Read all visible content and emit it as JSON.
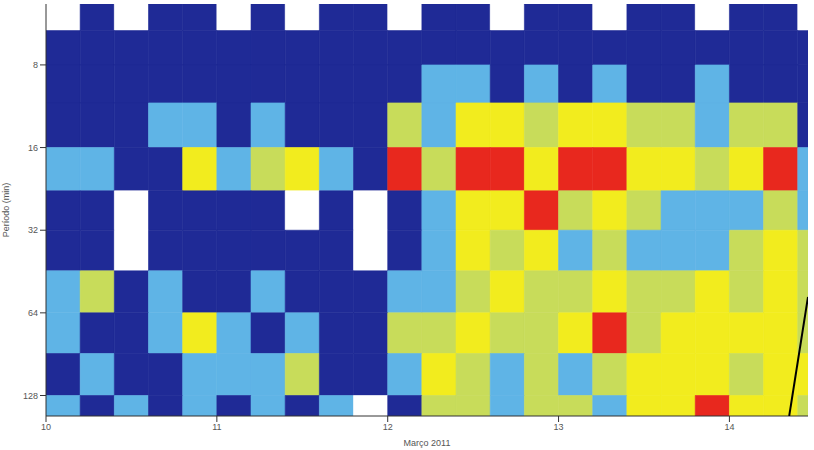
{
  "chart_data": {
    "type": "heatmap",
    "xlabel": "Março 2011",
    "ylabel": "Período (min)",
    "xlim": [
      10,
      14.46
    ],
    "xticks": [
      10,
      11,
      12,
      13,
      14
    ],
    "ylim": [
      4.8,
      152
    ],
    "yticks": [
      8,
      16,
      32,
      64,
      128
    ],
    "log": "y",
    "grid": false,
    "tick_labels": true,
    "cells": {
      "x_edges": [
        10,
        10.2,
        10.4,
        10.6,
        10.8,
        11,
        11.2,
        11.4,
        11.6,
        11.8,
        12,
        12.2,
        12.4,
        12.6,
        12.8,
        13,
        13.2,
        13.4,
        13.6,
        13.8,
        14,
        14.2,
        14.4,
        14.46
      ],
      "y_edges": [
        4.8,
        6,
        8,
        11,
        16,
        23,
        32,
        45,
        64,
        90,
        128,
        152
      ],
      "values": [
        [
          0,
          1,
          0,
          1,
          1,
          0,
          1,
          0,
          1,
          1,
          0,
          1,
          1,
          0,
          1,
          1,
          0,
          1,
          1,
          0,
          1,
          1,
          0
        ],
        [
          1,
          1,
          1,
          1,
          1,
          1,
          1,
          1,
          1,
          1,
          1,
          1,
          1,
          1,
          1,
          1,
          1,
          1,
          1,
          1,
          1,
          1,
          1
        ],
        [
          1,
          1,
          1,
          1,
          1,
          1,
          1,
          1,
          1,
          1,
          1,
          2,
          2,
          1,
          2,
          1,
          2,
          1,
          1,
          2,
          1,
          1,
          1
        ],
        [
          1,
          1,
          1,
          2,
          2,
          1,
          2,
          1,
          1,
          1,
          3,
          2,
          4,
          4,
          3,
          4,
          4,
          3,
          3,
          2,
          3,
          3,
          1
        ],
        [
          2,
          2,
          1,
          1,
          4,
          2,
          3,
          4,
          2,
          1,
          5,
          3,
          5,
          5,
          4,
          5,
          5,
          4,
          4,
          3,
          4,
          5,
          2
        ],
        [
          1,
          1,
          0,
          1,
          1,
          1,
          1,
          0,
          1,
          0,
          1,
          2,
          4,
          4,
          5,
          3,
          4,
          3,
          2,
          2,
          2,
          3,
          2
        ],
        [
          1,
          1,
          0,
          1,
          1,
          1,
          1,
          1,
          1,
          0,
          1,
          2,
          4,
          3,
          4,
          2,
          3,
          2,
          2,
          2,
          3,
          4,
          3
        ],
        [
          2,
          3,
          1,
          2,
          1,
          1,
          2,
          1,
          1,
          1,
          2,
          2,
          3,
          4,
          3,
          3,
          4,
          3,
          3,
          4,
          3,
          4,
          3
        ],
        [
          2,
          1,
          1,
          2,
          4,
          2,
          1,
          2,
          1,
          1,
          3,
          3,
          4,
          3,
          3,
          4,
          5,
          3,
          4,
          4,
          4,
          4,
          3
        ],
        [
          1,
          2,
          1,
          1,
          2,
          2,
          2,
          3,
          1,
          1,
          2,
          4,
          3,
          2,
          3,
          2,
          3,
          4,
          4,
          4,
          3,
          4,
          4
        ],
        [
          2,
          1,
          2,
          1,
          2,
          1,
          2,
          1,
          2,
          0,
          1,
          3,
          3,
          2,
          3,
          3,
          2,
          4,
          4,
          5,
          4,
          4,
          3
        ]
      ]
    },
    "cone_of_influence": {
      "x": [
        14.35,
        14.46
      ],
      "y": [
        152,
        56
      ]
    }
  }
}
